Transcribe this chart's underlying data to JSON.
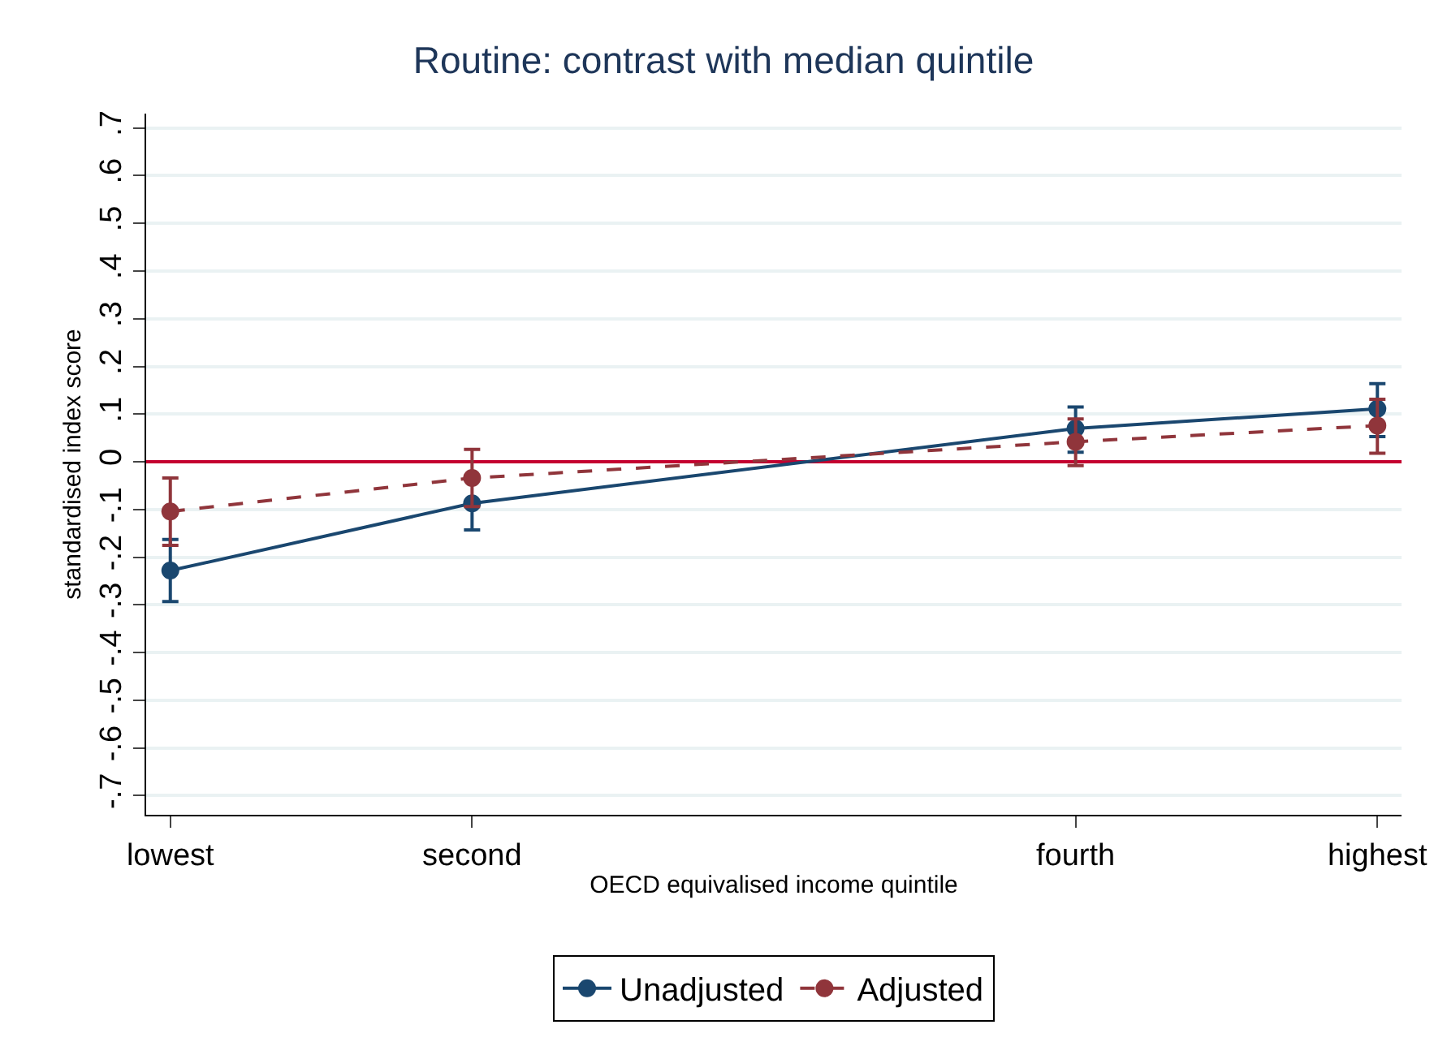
{
  "chart_data": {
    "type": "line",
    "title": "Routine: contrast with median quintile",
    "xlabel": "OECD equivalised income quintile",
    "ylabel": "standardised index score",
    "categories": [
      "lowest",
      "second",
      null,
      "fourth",
      "highest"
    ],
    "ylim": [
      -0.74,
      0.73
    ],
    "yticks": [
      {
        "value": -0.7,
        "label": "-.7"
      },
      {
        "value": -0.6,
        "label": "-.6"
      },
      {
        "value": -0.5,
        "label": "-.5"
      },
      {
        "value": -0.4,
        "label": "-.4"
      },
      {
        "value": -0.3,
        "label": "-.3"
      },
      {
        "value": -0.2,
        "label": "-.2"
      },
      {
        "value": -0.1,
        "label": "-.1"
      },
      0,
      {
        "value": 0.1,
        "label": ".1"
      },
      {
        "value": 0.2,
        "label": ".2"
      },
      {
        "value": 0.3,
        "label": ".3"
      },
      {
        "value": 0.4,
        "label": ".4"
      },
      {
        "value": 0.5,
        "label": ".5"
      },
      {
        "value": 0.6,
        "label": ".6"
      },
      {
        "value": 0.7,
        "label": ".7"
      }
    ],
    "grid": "y",
    "legend": "bottom",
    "marker": "circle",
    "ref_lines": [
      {
        "axis": "y",
        "value": 0,
        "color": "#c4002f"
      }
    ],
    "series": [
      {
        "name": "Unadjusted",
        "color": "#1a476f",
        "line_style": "solid",
        "values": [
          -0.228,
          -0.087,
          null,
          0.07,
          0.111
        ],
        "errors": [
          [
            -0.293,
            -0.163
          ],
          [
            -0.143,
            -0.087
          ],
          null,
          [
            0.02,
            0.115
          ],
          [
            0.053,
            0.164
          ]
        ]
      },
      {
        "name": "Adjusted",
        "color": "#90353b",
        "line_style": "dashed",
        "values": [
          -0.104,
          -0.034,
          null,
          0.042,
          0.076
        ],
        "errors": [
          [
            -0.175,
            -0.034
          ],
          [
            -0.094,
            0.026
          ],
          null,
          [
            -0.008,
            0.09
          ],
          [
            0.018,
            0.131
          ]
        ]
      }
    ]
  }
}
